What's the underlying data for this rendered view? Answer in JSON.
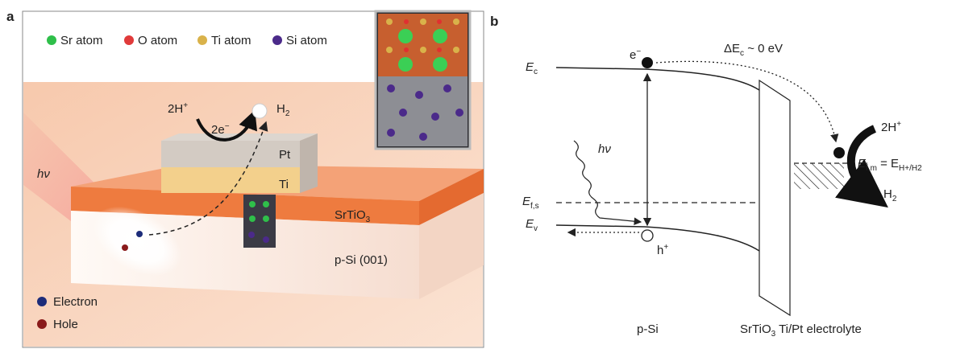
{
  "panel_a": {
    "label": "a",
    "legend": [
      "Sr atom",
      "O atom",
      "Ti atom",
      "Si atom"
    ],
    "reaction": {
      "reactant": "2H",
      "reactant_sup": "+",
      "electrons": "2e",
      "electrons_sup": "−",
      "product": "H",
      "product_sub": "2"
    },
    "light": "hν",
    "layers": {
      "pt": "Pt",
      "ti": "Ti",
      "srtio": "SrTiO",
      "srtio_sub": "3",
      "si": "p-Si (001)"
    },
    "carriers": [
      "Electron",
      "Hole"
    ]
  },
  "panel_b": {
    "label": "b",
    "offset": {
      "delta": "ΔE",
      "sub": "c",
      "value": " ~ 0 eV"
    },
    "electron": {
      "main": "e",
      "sup": "−"
    },
    "hole": {
      "main": "h",
      "sup": "+"
    },
    "conduction": {
      "main": "E",
      "sub": "c"
    },
    "fermi_si": {
      "main": "E",
      "sub": "f,s"
    },
    "valence": {
      "main": "E",
      "sub": "v"
    },
    "light": "hν",
    "reactant": {
      "main": "2H",
      "sup": "+"
    },
    "fermi_metal": {
      "main": "E",
      "sub": "f,m",
      "eq": " = E",
      "sub2": "H+/H2"
    },
    "product": {
      "main": "H",
      "sub": "2"
    },
    "region_si": "p-Si",
    "region_interface": {
      "main": "SrTiO",
      "sub": "3",
      "rest": " Ti/Pt electrolyte"
    }
  }
}
